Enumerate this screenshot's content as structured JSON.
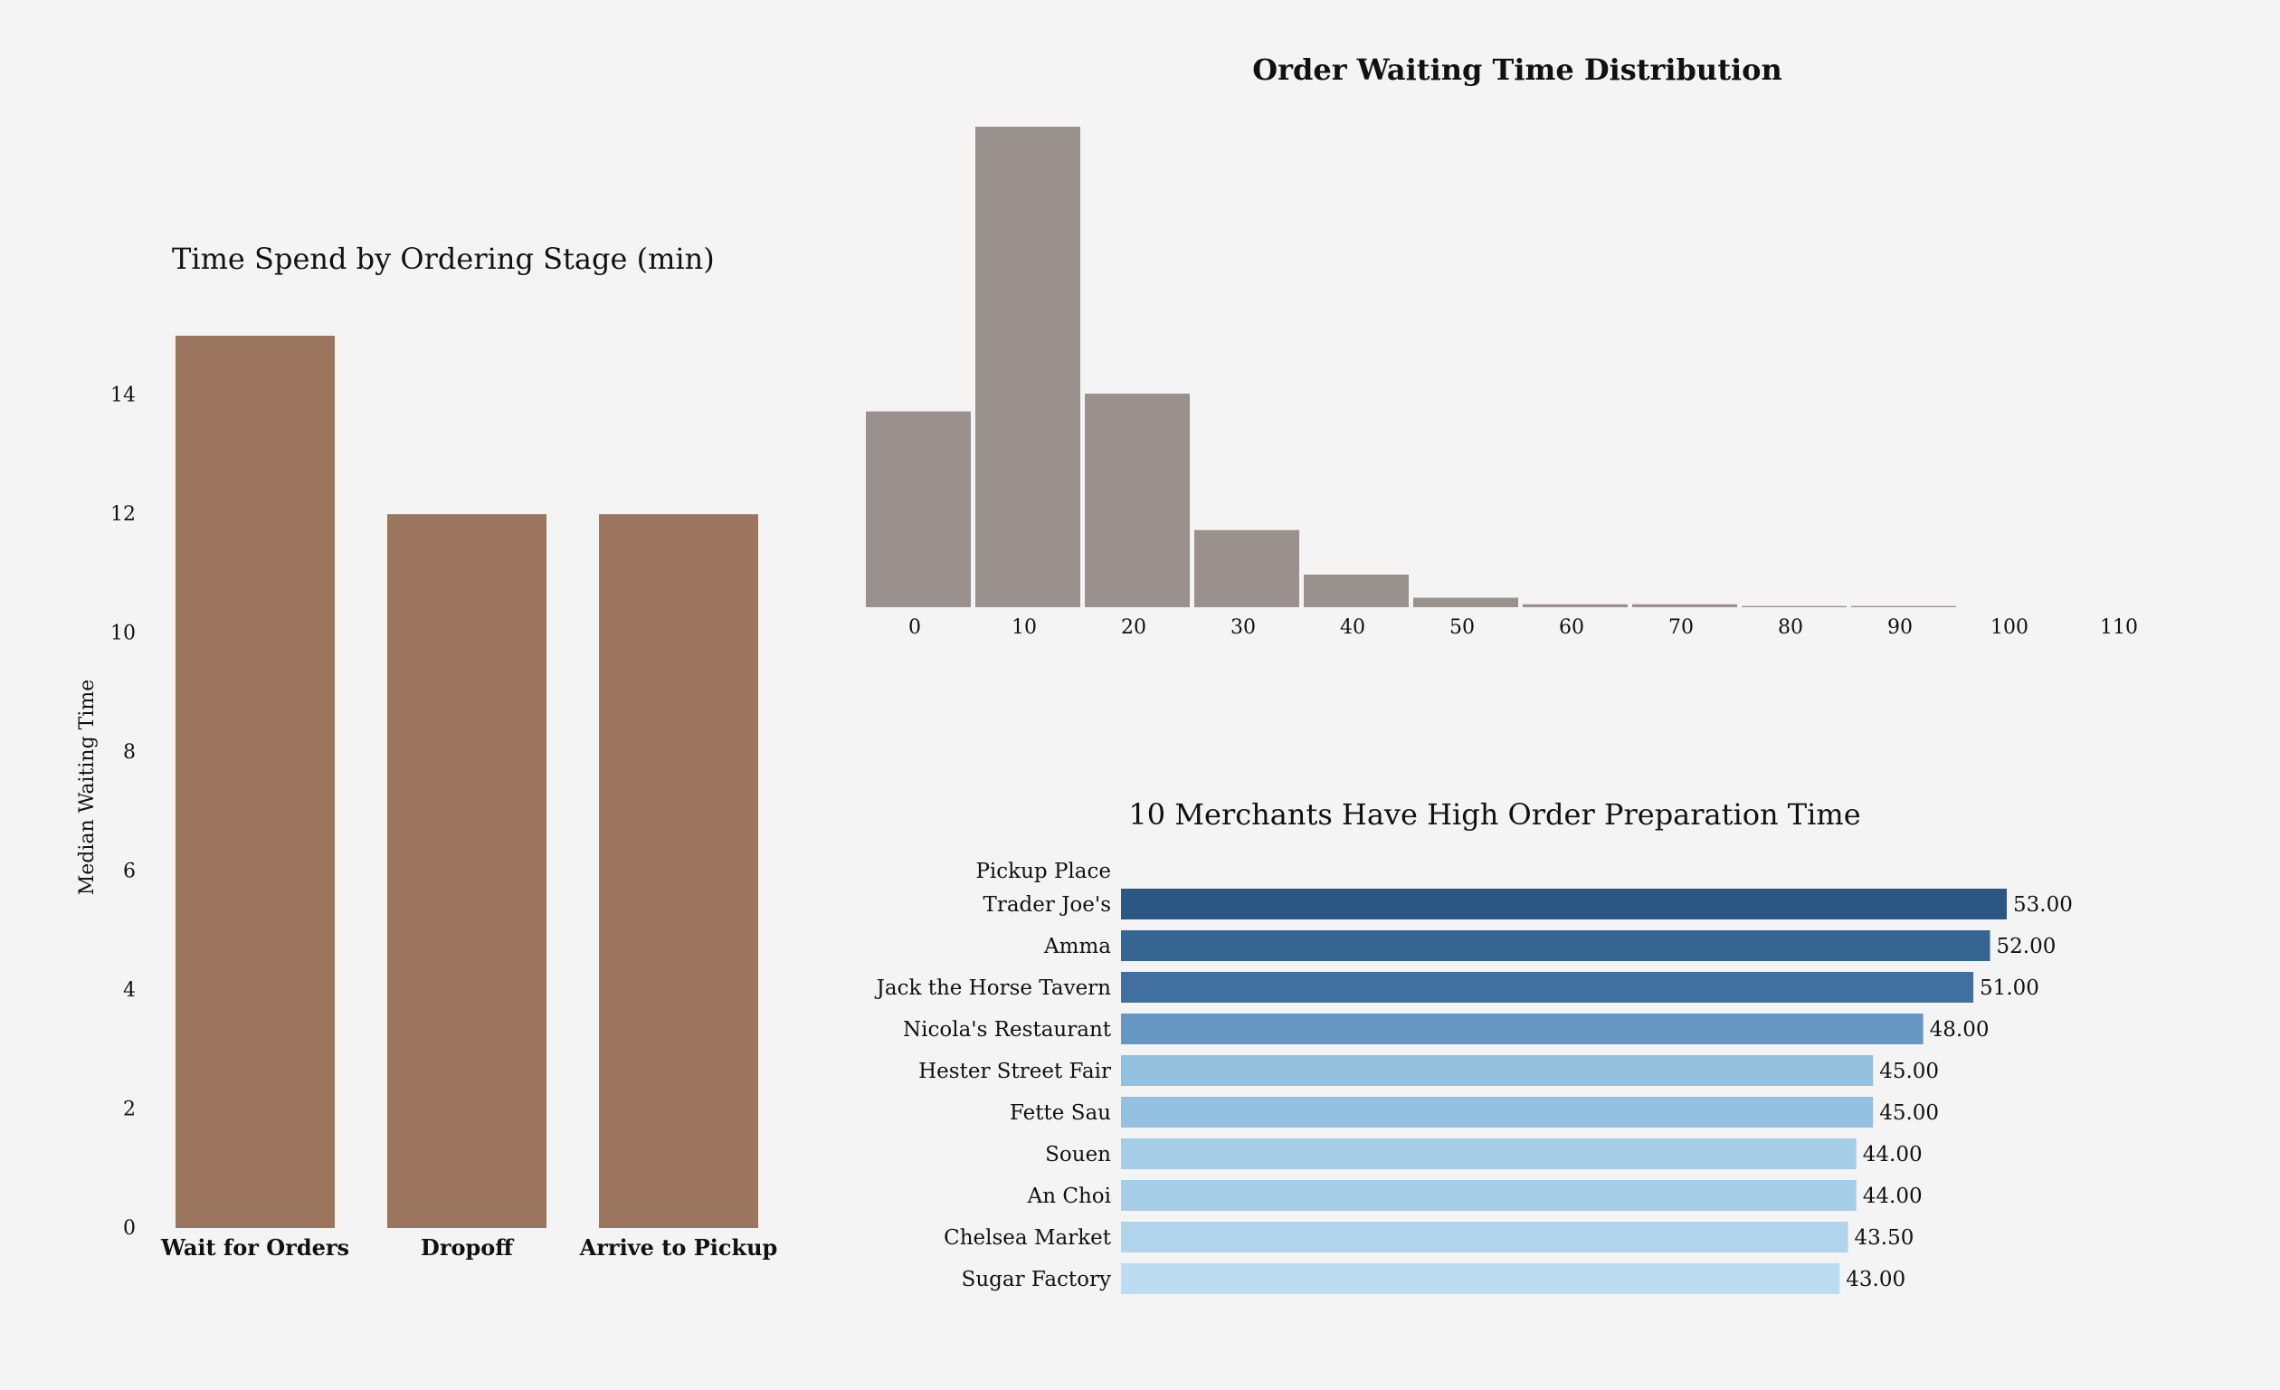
{
  "chart_data": [
    {
      "type": "bar",
      "title": "Time Spend by Ordering Stage (min)",
      "ylabel": "Median Waiting Time",
      "categories": [
        "Wait for Orders",
        "Dropoff",
        "Arrive to Pickup"
      ],
      "values": [
        15,
        12,
        12
      ],
      "yticks": [
        0,
        2,
        4,
        6,
        8,
        10,
        12,
        14
      ],
      "ylim": [
        0,
        15
      ],
      "grid": false,
      "color": "#9c755f"
    },
    {
      "type": "bar",
      "title": "Order Waiting Time Distribution",
      "bin_starts": [
        0,
        10,
        20,
        30,
        40,
        50,
        60,
        70,
        80,
        90
      ],
      "bin_width": 10,
      "values": [
        33,
        81,
        36,
        13,
        5.5,
        1.6,
        0.5,
        0.5,
        0.2,
        0.2
      ],
      "xticks": [
        0,
        10,
        20,
        30,
        40,
        50,
        60,
        70,
        80,
        90,
        100,
        110
      ],
      "ylim": [
        0,
        81
      ],
      "grid": false,
      "color": "#9a908c"
    },
    {
      "type": "bar",
      "orientation": "horizontal",
      "title": "10 Merchants Have High Order Preparation Time",
      "ylabel": "Pickup Place",
      "categories": [
        "Trader Joe's",
        "Amma",
        "Jack the Horse Tavern",
        "Nicola's Restaurant",
        "Hester Street Fair",
        "Fette Sau",
        "Souen",
        "An Choi",
        "Chelsea Market",
        "Sugar Factory"
      ],
      "values": [
        53.0,
        52.0,
        51.0,
        48.0,
        45.0,
        45.0,
        44.0,
        44.0,
        43.5,
        43.0
      ],
      "value_labels": [
        "53.00",
        "52.00",
        "51.00",
        "48.00",
        "45.00",
        "45.00",
        "44.00",
        "44.00",
        "43.50",
        "43.00"
      ],
      "colors": [
        "#2a5783",
        "#376591",
        "#41709f",
        "#6798c4",
        "#94c1e0",
        "#94c1e0",
        "#a6cde7",
        "#a6cde7",
        "#b0d4ec",
        "#bbdcf1"
      ],
      "grid": false
    }
  ]
}
